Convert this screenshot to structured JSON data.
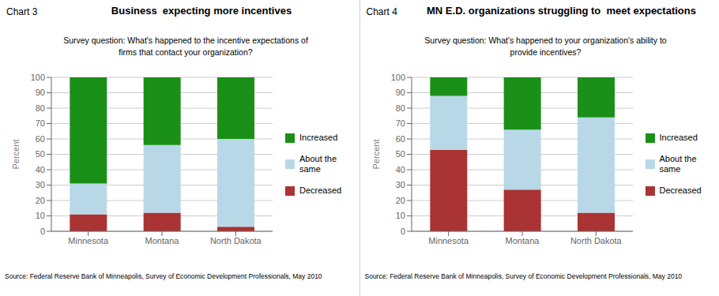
{
  "chart_data": [
    {
      "type": "bar",
      "stacked": true,
      "grid": true,
      "legend": "right",
      "title": "Business  expecting more incentives",
      "subtitle": "Survey question: What's happened to the incentive expectations of\nfirms that contact your organization?",
      "annotations": [
        "Chart 3",
        "Source: Federal Reserve Bank of Minneapolis, Survey of Economic Development Professionals, May 2010"
      ],
      "y_label": "Percent",
      "categories": [
        "Minnesota",
        "Montana",
        "North Dakota"
      ],
      "series": [
        {
          "name": "Decreased",
          "color": "#aa3333",
          "values": [
            11,
            12,
            3
          ]
        },
        {
          "name": "About the\nsame",
          "color": "#b8d8e8",
          "values": [
            20,
            44,
            57
          ]
        },
        {
          "name": "Increased",
          "color": "#1a9018",
          "values": [
            69,
            44,
            40
          ]
        }
      ],
      "ylim": [
        0,
        100
      ],
      "yticks": [
        0,
        10,
        20,
        30,
        40,
        50,
        60,
        70,
        80,
        90,
        100
      ]
    },
    {
      "type": "bar",
      "stacked": true,
      "grid": true,
      "legend": "right",
      "title": "MN E.D. organizations struggling to  meet expectations",
      "subtitle": "Survey question: What's happened to your organization's ability to\nprovide incentives?",
      "annotations": [
        "Chart 4",
        "Source: Federal Reserve Bank of Minneapolis, Survey of Economic Development Professionals, May 2010"
      ],
      "y_label": "Percent",
      "categories": [
        "Minnesota",
        "Montana",
        "North Dakota"
      ],
      "series": [
        {
          "name": "Decreased",
          "color": "#aa3333",
          "values": [
            53,
            27,
            12
          ]
        },
        {
          "name": "About the\nsame",
          "color": "#b8d8e8",
          "values": [
            35,
            39,
            62
          ]
        },
        {
          "name": "Increased",
          "color": "#1a9018",
          "values": [
            12,
            34,
            26
          ]
        }
      ],
      "ylim": [
        0,
        100
      ],
      "yticks": [
        0,
        10,
        20,
        30,
        40,
        50,
        60,
        70,
        80,
        90,
        100
      ]
    }
  ]
}
